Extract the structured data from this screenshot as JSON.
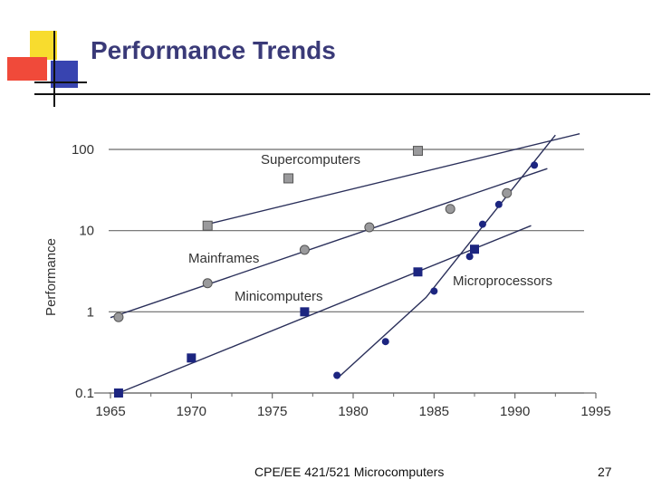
{
  "slide": {
    "title": "Performance Trends",
    "footer_text": "CPE/EE 421/521 Microcomputers",
    "page_number": "27"
  },
  "colors": {
    "title": "#3a3a78",
    "logo_yellow": "#f8dc2e",
    "logo_red": "#f04a3a",
    "logo_blue": "#3844b0",
    "gray_marker": "#9a9a9c",
    "navy_marker": "#1c2580",
    "line": "#2a2f5a"
  },
  "chart_data": {
    "type": "scatter",
    "ylabel": "Performance",
    "xlabel": "",
    "y_scale": "log",
    "xlim": [
      1965,
      1995
    ],
    "ylim": [
      0.1,
      100
    ],
    "x_ticks": [
      "1965",
      "1970",
      "1975",
      "1980",
      "1985",
      "1990",
      "1995"
    ],
    "y_ticks": [
      {
        "label": "100",
        "value": 100
      },
      {
        "label": "10",
        "value": 10
      },
      {
        "label": "1",
        "value": 1
      },
      {
        "label": "0.1",
        "value": 0.1
      }
    ],
    "grid": "horizontal",
    "series": [
      {
        "name": "Supercomputers",
        "marker": "gray-square",
        "points": [
          [
            1971,
            11.5
          ],
          [
            1976,
            44
          ],
          [
            1984,
            96
          ]
        ],
        "trend": [
          [
            1971,
            12
          ],
          [
            1994,
            156
          ]
        ]
      },
      {
        "name": "Mainframes",
        "marker": "gray-circle",
        "points": [
          [
            1965.5,
            0.86
          ],
          [
            1971,
            2.25
          ],
          [
            1977,
            5.8
          ],
          [
            1981,
            11
          ],
          [
            1986,
            18.5
          ],
          [
            1989.5,
            29
          ]
        ],
        "trend": [
          [
            1965,
            0.85
          ],
          [
            1992,
            58
          ]
        ]
      },
      {
        "name": "Minicomputers",
        "marker": "navy-square",
        "points": [
          [
            1965.5,
            0.1
          ],
          [
            1970,
            0.27
          ],
          [
            1977,
            1
          ],
          [
            1984,
            3.1
          ],
          [
            1987.5,
            5.9
          ]
        ],
        "trend": [
          [
            1965.5,
            0.1
          ],
          [
            1991,
            11.5
          ]
        ]
      },
      {
        "name": "Microprocessors",
        "marker": "navy-circle",
        "points": [
          [
            1979,
            0.165
          ],
          [
            1982,
            0.43
          ],
          [
            1985,
            1.8
          ],
          [
            1987.2,
            4.8
          ],
          [
            1988,
            12
          ],
          [
            1989,
            21
          ],
          [
            1991.2,
            64
          ]
        ],
        "trend": [
          [
            1979,
            0.15
          ],
          [
            1984.5,
            1.5
          ],
          [
            1992.5,
            150
          ]
        ]
      }
    ]
  }
}
